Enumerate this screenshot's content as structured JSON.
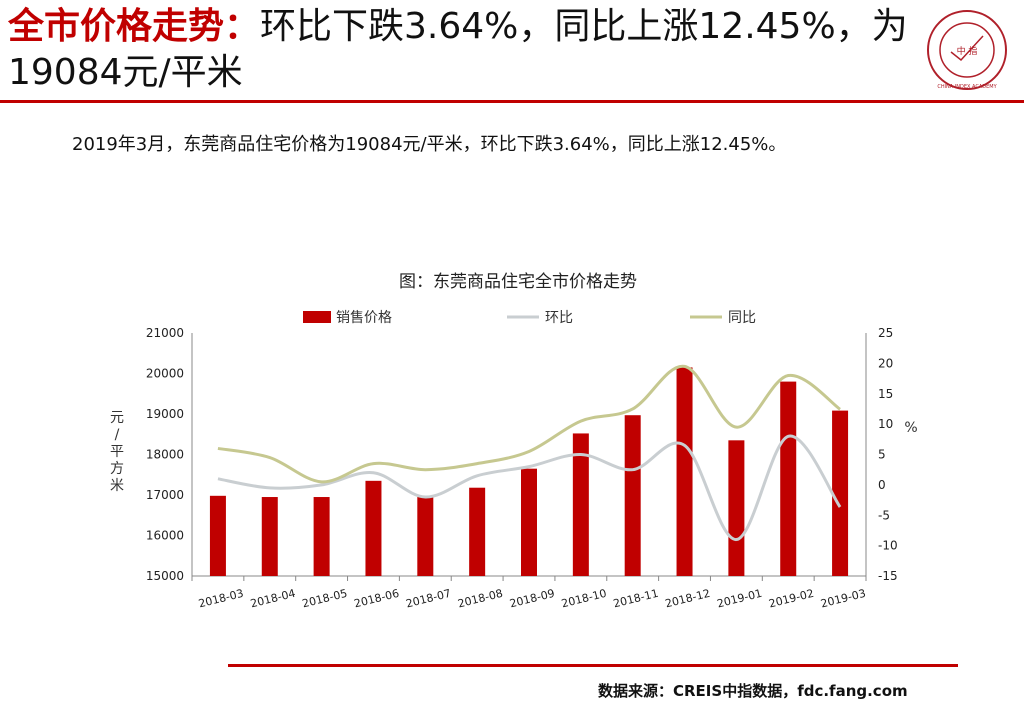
{
  "header": {
    "title_lead": "全市价格走势：",
    "title_rest": "环比下跌3.64%，同比上涨12.45%，为19084元/平米",
    "logo_text": "中 指",
    "logo_ring_text": "CHINA INDEX ACADEMY"
  },
  "summary": "2019年3月，东莞商品住宅价格为19084元/平米，环比下跌3.64%，同比上涨12.45%。",
  "footer": {
    "source": "数据来源：CREIS中指数据，fdc.fang.com"
  },
  "colors": {
    "accent": "#c00000",
    "bar": "#c00000",
    "mom": "#c9ced1",
    "yoy": "#c6c890"
  },
  "chart_data": {
    "type": "bar",
    "title": "图：东莞商品住宅全市价格走势",
    "categories": [
      "2018-03",
      "2018-04",
      "2018-05",
      "2018-06",
      "2018-07",
      "2018-08",
      "2018-09",
      "2018-10",
      "2018-11",
      "2018-12",
      "2019-01",
      "2019-02",
      "2019-03"
    ],
    "left_axis": {
      "label": "元/平方米",
      "ylim": [
        15000,
        21000
      ],
      "ticks": [
        "15000",
        "16000",
        "17000",
        "18000",
        "19000",
        "20000",
        "21000"
      ]
    },
    "right_axis": {
      "label": "%",
      "ylim": [
        -15,
        25
      ],
      "ticks": [
        "-15",
        "-10",
        "-5",
        "0",
        "5",
        "10",
        "15",
        "20",
        "25"
      ]
    },
    "series": [
      {
        "name": "销售价格",
        "kind": "bar",
        "axis": "left",
        "values": [
          16980,
          16950,
          16950,
          17350,
          16950,
          17180,
          17650,
          18520,
          18970,
          20150,
          18350,
          19800,
          19084
        ]
      },
      {
        "name": "环比",
        "kind": "line",
        "axis": "right",
        "values": [
          1,
          -0.5,
          0,
          2,
          -2,
          1.5,
          3,
          5,
          2.5,
          6.5,
          -9,
          8,
          -3.64
        ]
      },
      {
        "name": "同比",
        "kind": "line",
        "axis": "right",
        "values": [
          6,
          4.5,
          0.5,
          3.5,
          2.5,
          3.5,
          5.5,
          10.5,
          12.5,
          19.5,
          9.5,
          18,
          12.45
        ]
      }
    ],
    "legend_position": "top",
    "grid": false
  }
}
